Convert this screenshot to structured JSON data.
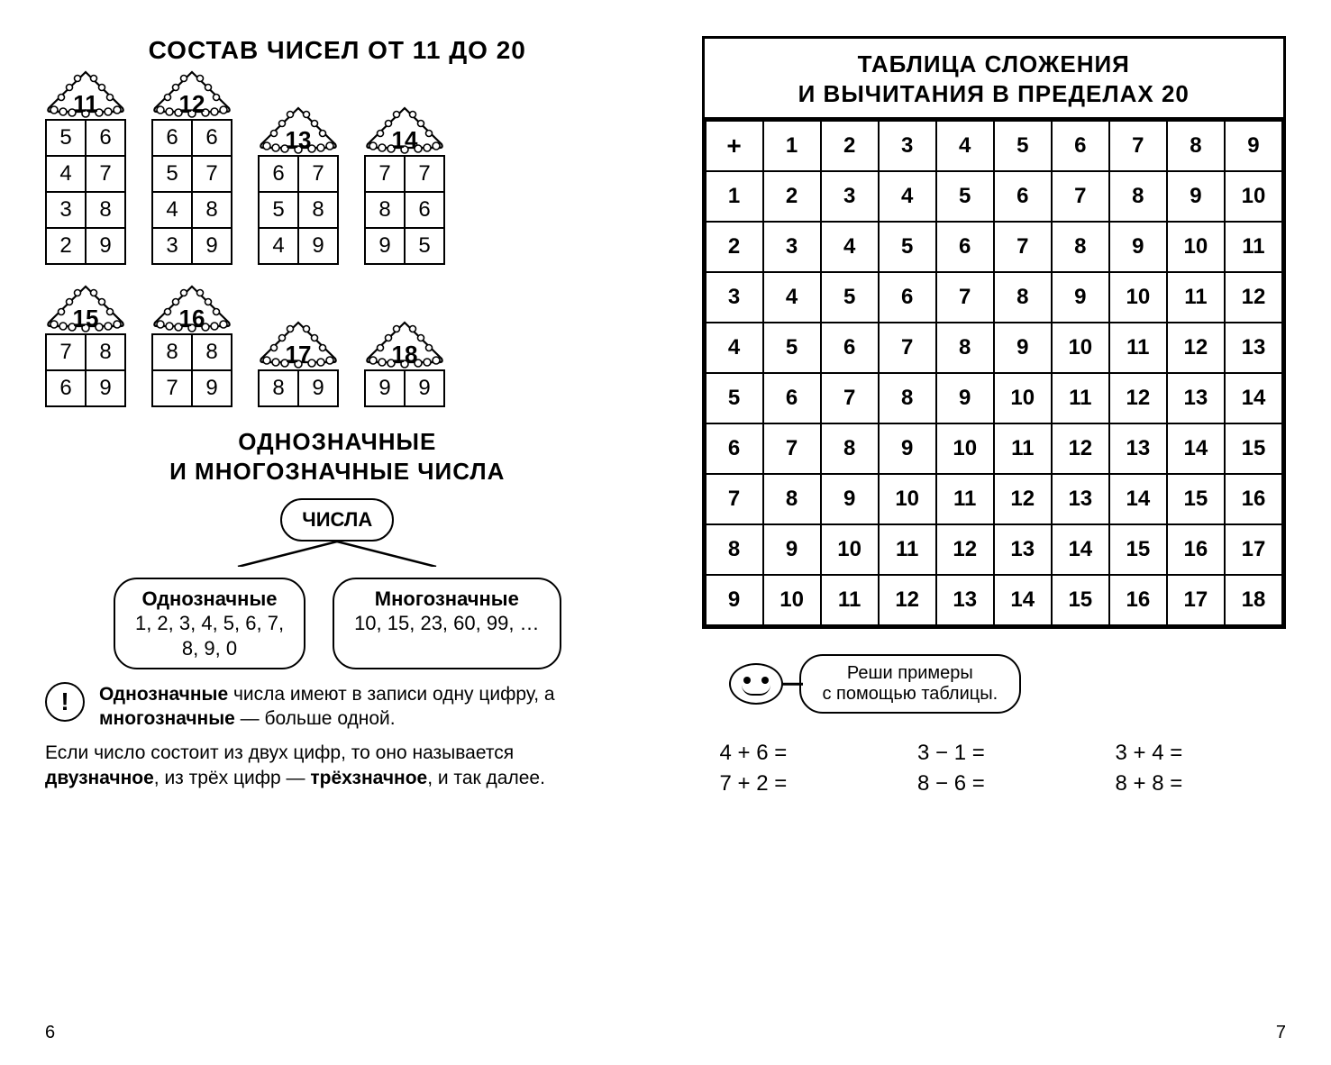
{
  "leftPage": {
    "title": "СОСТАВ ЧИСЕЛ ОТ 11 ДО 20",
    "compositions": [
      {
        "head": "11",
        "rows": [
          [
            "5",
            "6"
          ],
          [
            "4",
            "7"
          ],
          [
            "3",
            "8"
          ],
          [
            "2",
            "9"
          ]
        ]
      },
      {
        "head": "12",
        "rows": [
          [
            "6",
            "6"
          ],
          [
            "5",
            "7"
          ],
          [
            "4",
            "8"
          ],
          [
            "3",
            "9"
          ]
        ]
      },
      {
        "head": "13",
        "rows": [
          [
            "6",
            "7"
          ],
          [
            "5",
            "8"
          ],
          [
            "4",
            "9"
          ]
        ]
      },
      {
        "head": "14",
        "rows": [
          [
            "7",
            "7"
          ],
          [
            "8",
            "6"
          ],
          [
            "9",
            "5"
          ]
        ]
      },
      {
        "head": "15",
        "rows": [
          [
            "7",
            "8"
          ],
          [
            "6",
            "9"
          ]
        ]
      },
      {
        "head": "16",
        "rows": [
          [
            "8",
            "8"
          ],
          [
            "7",
            "9"
          ]
        ]
      },
      {
        "head": "17",
        "rows": [
          [
            "8",
            "9"
          ]
        ]
      },
      {
        "head": "18",
        "rows": [
          [
            "9",
            "9"
          ]
        ]
      }
    ],
    "subtitle": "ОДНОЗНАЧНЫЕ\nИ МНОГОЗНАЧНЫЕ ЧИСЛА",
    "rootBubble": "ЧИСЛА",
    "leftBubble": {
      "title": "Однозначные",
      "body": "1, 2, 3, 4, 5, 6, 7,\n8, 9, 0"
    },
    "rightBubble": {
      "title": "Многозначные",
      "body": "10, 15, 23, 60, 99, …"
    },
    "infoText": "<b>Однозначные</b> числа имеют в записи одну цифру, а <b>многозначные</b> — больше одной.",
    "bodyText": "Если число состоит из двух цифр, то оно называется <b>двузначное</b>, из трёх цифр — <b>трёхзначное</b>, и так далее.",
    "pageNumber": "6"
  },
  "rightPage": {
    "title": "ТАБЛИЦА СЛОЖЕНИЯ\nИ ВЫЧИТАНИЯ В ПРЕДЕЛАХ 20",
    "corner": "+",
    "headers": [
      "1",
      "2",
      "3",
      "4",
      "5",
      "6",
      "7",
      "8",
      "9"
    ],
    "rows": [
      {
        "h": "1",
        "c": [
          "2",
          "3",
          "4",
          "5",
          "6",
          "7",
          "8",
          "9",
          "10"
        ]
      },
      {
        "h": "2",
        "c": [
          "3",
          "4",
          "5",
          "6",
          "7",
          "8",
          "9",
          "10",
          "11"
        ]
      },
      {
        "h": "3",
        "c": [
          "4",
          "5",
          "6",
          "7",
          "8",
          "9",
          "10",
          "11",
          "12"
        ]
      },
      {
        "h": "4",
        "c": [
          "5",
          "6",
          "7",
          "8",
          "9",
          "10",
          "11",
          "12",
          "13"
        ]
      },
      {
        "h": "5",
        "c": [
          "6",
          "7",
          "8",
          "9",
          "10",
          "11",
          "12",
          "13",
          "14"
        ]
      },
      {
        "h": "6",
        "c": [
          "7",
          "8",
          "9",
          "10",
          "11",
          "12",
          "13",
          "14",
          "15"
        ]
      },
      {
        "h": "7",
        "c": [
          "8",
          "9",
          "10",
          "11",
          "12",
          "13",
          "14",
          "15",
          "16"
        ]
      },
      {
        "h": "8",
        "c": [
          "9",
          "10",
          "11",
          "12",
          "13",
          "14",
          "15",
          "16",
          "17"
        ]
      },
      {
        "h": "9",
        "c": [
          "10",
          "11",
          "12",
          "13",
          "14",
          "15",
          "16",
          "17",
          "18"
        ]
      }
    ],
    "speech": "Реши примеры\nс помощью таблицы.",
    "problems": [
      "4 + 6 =",
      "3 − 1 =",
      "3 + 4 =",
      "7 + 2 =",
      "8 − 6 =",
      "8 + 8 ="
    ],
    "pageNumber": "7"
  },
  "style": {
    "border_color": "#000000",
    "background_color": "#ffffff",
    "title_fontsize_pt": 21,
    "cell_fontsize_pt": 18,
    "body_fontsize_pt": 16,
    "tree_fill": "#ffffff",
    "tree_stroke": "#000000",
    "tree_stroke_width": 2.2
  }
}
